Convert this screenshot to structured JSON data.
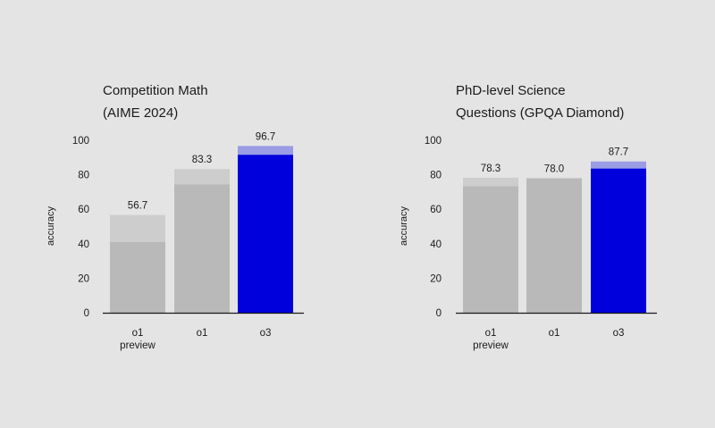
{
  "chart_data": [
    {
      "type": "bar",
      "title_lines": [
        "Competition Math",
        "(AIME 2024)"
      ],
      "ylabel": "accuracy",
      "ylim": [
        0,
        100
      ],
      "yticks": [
        0,
        20,
        40,
        60,
        80,
        100
      ],
      "categories": [
        [
          "o1",
          "preview"
        ],
        [
          "o1"
        ],
        [
          "o3"
        ]
      ],
      "values": [
        56.7,
        83.3,
        96.7
      ],
      "value_labels": [
        "56.7",
        "83.3",
        "96.7"
      ],
      "base_values": [
        41,
        74.4,
        91.6
      ],
      "colors": {
        "base": [
          "#b9b9b9",
          "#b9b9b9",
          "#0000dd"
        ],
        "top": [
          "#cdcdcd",
          "#cdcdcd",
          "#9a9ce6"
        ]
      }
    },
    {
      "type": "bar",
      "title_lines": [
        "PhD-level Science",
        "Questions (GPQA Diamond)"
      ],
      "ylabel": "accuracy",
      "ylim": [
        0,
        100
      ],
      "yticks": [
        0,
        20,
        40,
        60,
        80,
        100
      ],
      "categories": [
        [
          "o1",
          "preview"
        ],
        [
          "o1"
        ],
        [
          "o3"
        ]
      ],
      "values": [
        78.3,
        78.0,
        87.7
      ],
      "value_labels": [
        "78.3",
        "78.0",
        "87.7"
      ],
      "base_values": [
        73.3,
        78.0,
        83.6
      ],
      "colors": {
        "base": [
          "#b9b9b9",
          "#b9b9b9",
          "#0000dd"
        ],
        "top": [
          "#cdcdcd",
          "#cdcdcd",
          "#9a9ce6"
        ]
      }
    }
  ]
}
